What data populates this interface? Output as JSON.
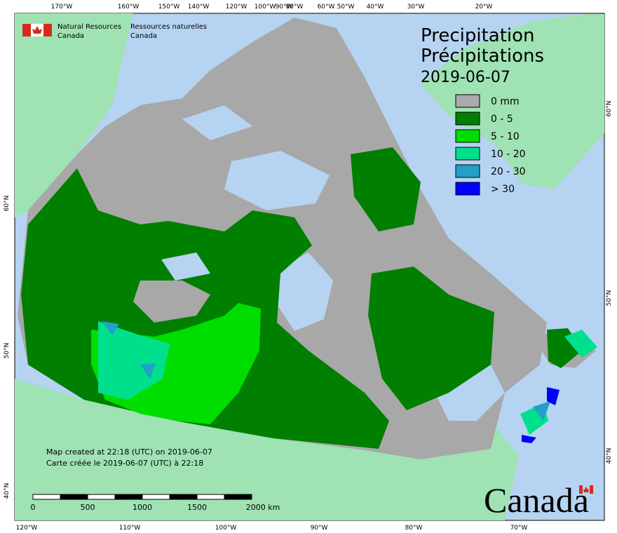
{
  "header": {
    "org_en": [
      "Natural Resources",
      "Canada"
    ],
    "org_fr": [
      "Ressources naturelles",
      "Canada"
    ]
  },
  "title": {
    "en": "Precipitation",
    "fr": "Précipitations",
    "date": "2019-06-07"
  },
  "legend": [
    {
      "label": "0 mm",
      "color": "#aaaaaa"
    },
    {
      "label": "0 - 5",
      "color": "#007f00"
    },
    {
      "label": "5 - 10",
      "color": "#00dd00"
    },
    {
      "label": "10 - 20",
      "color": "#00e08c"
    },
    {
      "label": "20 - 30",
      "color": "#22a0c8"
    },
    {
      "label": "> 30",
      "color": "#0000ff"
    }
  ],
  "graticule": {
    "top": [
      "170°W",
      "160°W",
      "150°W",
      "140°W",
      "120°W",
      "100°W",
      "90°W",
      "80°W",
      "60°W",
      "50°W",
      "40°W",
      "30°W",
      "20°W"
    ],
    "bottom": [
      "120°W",
      "110°W",
      "100°W",
      "90°W",
      "80°W",
      "70°W"
    ],
    "left": [
      "60°N",
      "50°N",
      "40°N"
    ],
    "right": [
      "60°N",
      "50°N",
      "40°N"
    ]
  },
  "credits": [
    "Map created at 22:18 (UTC) on 2019-06-07",
    "Carte créée le 2019-06-07 (UTC) à 22:18"
  ],
  "scale_bar": [
    "0",
    "500",
    "1000",
    "1500",
    "2000 km"
  ],
  "wordmark": "Canada"
}
